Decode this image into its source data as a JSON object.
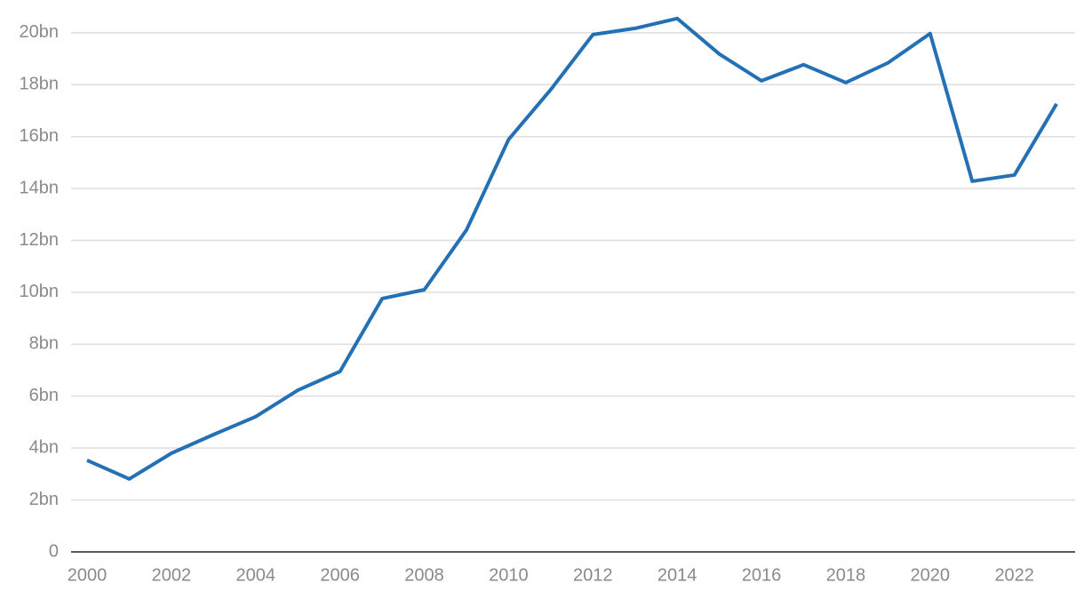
{
  "chart_data": {
    "type": "line",
    "x": [
      2000,
      2001,
      2002,
      2003,
      2004,
      2005,
      2006,
      2007,
      2008,
      2009,
      2010,
      2011,
      2012,
      2013,
      2014,
      2015,
      2016,
      2017,
      2018,
      2019,
      2020,
      2021,
      2022,
      2023
    ],
    "series": [
      {
        "color": "#2470b5",
        "values": [
          3.53,
          2.81,
          3.8,
          4.52,
          5.21,
          6.23,
          6.95,
          9.76,
          10.1,
          12.4,
          15.89,
          17.81,
          19.93,
          20.17,
          20.55,
          19.18,
          18.15,
          18.77,
          18.08,
          18.84,
          19.97,
          14.28,
          14.52,
          17.26
        ]
      }
    ],
    "xlim": [
      1999.62,
      2023.44
    ],
    "xticks": [
      2000,
      2002,
      2004,
      2006,
      2008,
      2010,
      2012,
      2014,
      2016,
      2018,
      2020,
      2022
    ],
    "ylim": [
      0,
      20.92
    ],
    "yticks": [
      0,
      {
        "value": 2,
        "label": "2bn"
      },
      {
        "value": 4,
        "label": "4bn"
      },
      {
        "value": 6,
        "label": "6bn"
      },
      {
        "value": 8,
        "label": "8bn"
      },
      {
        "value": 10,
        "label": "10bn"
      },
      {
        "value": 12,
        "label": "12bn"
      },
      {
        "value": 14,
        "label": "14bn"
      },
      {
        "value": 16,
        "label": "16bn"
      },
      {
        "value": 18,
        "label": "18bn"
      },
      {
        "value": 20,
        "label": "20bn"
      }
    ],
    "grid": true
  }
}
